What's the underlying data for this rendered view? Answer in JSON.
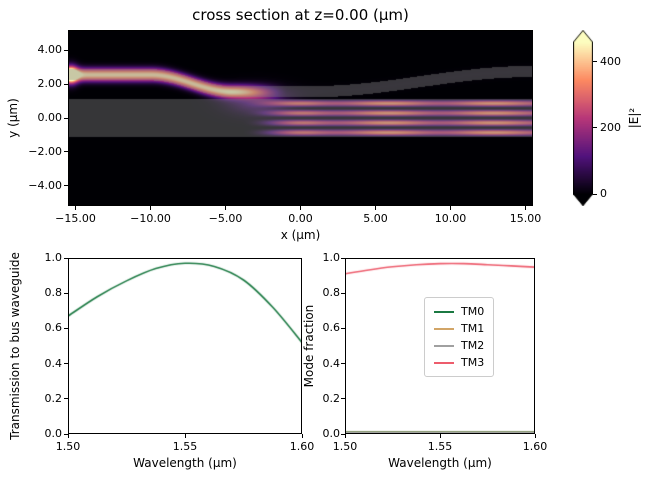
{
  "chart_data": [
    {
      "type": "heatmap",
      "title": "cross section at z=0.00 (μm)",
      "xlabel": "x (μm)",
      "ylabel": "y (μm)",
      "xlim": [
        -15.5,
        15.5
      ],
      "ylim": [
        -5.2,
        5.2
      ],
      "xtick_values": [
        -15,
        -10,
        -5,
        0,
        5,
        10,
        15
      ],
      "xtick_labels": [
        "−15.00",
        "−10.00",
        "−5.00",
        "0.00",
        "5.00",
        "10.00",
        "15.00"
      ],
      "ytick_values": [
        4,
        2,
        0,
        -2,
        -4
      ],
      "ytick_labels": [
        "4.00",
        "2.00",
        "0.00",
        "−2.00",
        "−4.00"
      ],
      "colorbar": {
        "label": "|E|²",
        "tick_values": [
          0,
          200,
          400
        ],
        "tick_labels": [
          "0",
          "200",
          "400"
        ],
        "vmin": 0,
        "vmax": 460,
        "colormap": "magma",
        "extend": "both"
      },
      "scene": {
        "description": "bright strip waveguide enters from upper left, bends down and couples into a wide gray multimode bus waveguide; a four-lobed TM3 interference pattern propagates to the right inside the slab; the strip continues unlit, curving up toward the upper right",
        "slab_half_width_um": 1.15,
        "strip_half_width_um": 0.33,
        "strip_y_left_um": 2.55,
        "strip_y_right_um": 2.75,
        "mode_lobes": 4,
        "peak_intensity": 540,
        "slab_peak_intensity": 460
      }
    },
    {
      "type": "line",
      "xlabel": "Wavelength (μm)",
      "ylabel": "Transmission to bus waveguide",
      "xlim": [
        1.5,
        1.6
      ],
      "ylim": [
        0.0,
        1.0
      ],
      "xtick_values": [
        1.5,
        1.55,
        1.6
      ],
      "xtick_labels": [
        "1.50",
        "1.55",
        "1.60"
      ],
      "ytick_values": [
        0.0,
        0.2,
        0.4,
        0.6,
        0.8,
        1.0
      ],
      "ytick_labels": [
        "0.0",
        "0.2",
        "0.4",
        "0.6",
        "0.8",
        "1.0"
      ],
      "series": [
        {
          "name": "transmission",
          "color": "#1b7942",
          "x": [
            1.5,
            1.5125,
            1.525,
            1.5375,
            1.55,
            1.5625,
            1.575,
            1.5875,
            1.6
          ],
          "y": [
            0.67,
            0.78,
            0.87,
            0.94,
            0.97,
            0.952,
            0.875,
            0.72,
            0.52
          ]
        }
      ]
    },
    {
      "type": "line",
      "xlabel": "Wavelength (μm)",
      "ylabel": "Mode fraction",
      "xlim": [
        1.5,
        1.6
      ],
      "ylim": [
        0.0,
        1.0
      ],
      "xtick_values": [
        1.5,
        1.55,
        1.6
      ],
      "xtick_labels": [
        "1.50",
        "1.55",
        "1.60"
      ],
      "ytick_values": [
        0.0,
        0.2,
        0.4,
        0.6,
        0.8,
        1.0
      ],
      "ytick_labels": [
        "0.0",
        "0.2",
        "0.4",
        "0.6",
        "0.8",
        "1.0"
      ],
      "legend_position": "center right",
      "series": [
        {
          "name": "TM0",
          "color": "#1b7942",
          "x": [
            1.5,
            1.5125,
            1.525,
            1.5375,
            1.55,
            1.5625,
            1.575,
            1.5875,
            1.6
          ],
          "y": [
            0.012,
            0.012,
            0.012,
            0.012,
            0.012,
            0.012,
            0.012,
            0.012,
            0.012
          ]
        },
        {
          "name": "TM1",
          "color": "#d2a567",
          "x": [
            1.5,
            1.5125,
            1.525,
            1.5375,
            1.55,
            1.5625,
            1.575,
            1.5875,
            1.6
          ],
          "y": [
            0.01,
            0.01,
            0.01,
            0.01,
            0.01,
            0.01,
            0.01,
            0.01,
            0.01
          ]
        },
        {
          "name": "TM2",
          "color": "#a0a0a0",
          "x": [
            1.5,
            1.5125,
            1.525,
            1.5375,
            1.55,
            1.5625,
            1.575,
            1.5875,
            1.6
          ],
          "y": [
            0.008,
            0.008,
            0.008,
            0.008,
            0.008,
            0.008,
            0.008,
            0.008,
            0.008
          ]
        },
        {
          "name": "TM3",
          "color": "#ed5c6c",
          "x": [
            1.5,
            1.5125,
            1.525,
            1.5375,
            1.55,
            1.5625,
            1.575,
            1.5875,
            1.6
          ],
          "y": [
            0.91,
            0.932,
            0.95,
            0.962,
            0.968,
            0.968,
            0.962,
            0.955,
            0.948
          ]
        }
      ]
    }
  ]
}
